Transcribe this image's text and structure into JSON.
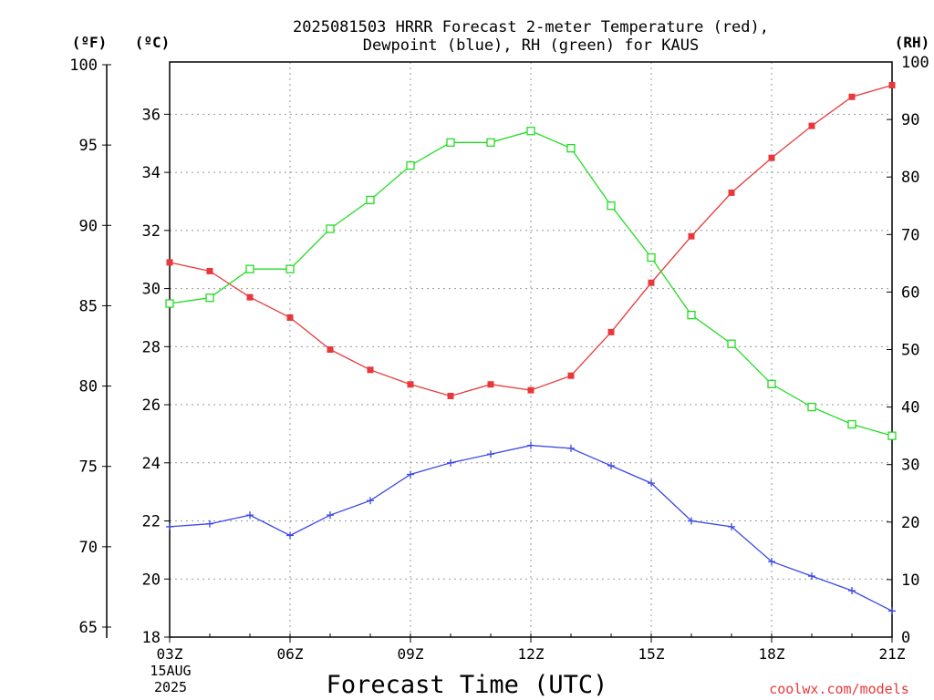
{
  "chart_data": {
    "type": "line",
    "title_line1": "2025081503 HRRR Forecast 2-meter Temperature (red),",
    "title_line2": "Dewpoint (blue), RH (green) for KAUS",
    "xlabel": "Forecast Time (UTC)",
    "credit": "coolwx.com/models",
    "left_outer_axis": {
      "unit": "(ºF)",
      "range": [
        65,
        100
      ],
      "ticks": [
        "65",
        "70",
        "75",
        "80",
        "85",
        "90",
        "95",
        "100"
      ]
    },
    "left_inner_axis": {
      "unit": "(ºC)",
      "range": [
        18,
        37.8
      ],
      "ticks": [
        "18",
        "20",
        "22",
        "24",
        "26",
        "28",
        "30",
        "32",
        "34",
        "36"
      ]
    },
    "right_axis": {
      "unit": "(RH)",
      "range": [
        0,
        100
      ],
      "ticks": [
        "0",
        "10",
        "20",
        "30",
        "40",
        "50",
        "60",
        "70",
        "80",
        "90",
        "100"
      ]
    },
    "x_hours": [
      3,
      4,
      5,
      6,
      7,
      8,
      9,
      10,
      11,
      12,
      13,
      14,
      15,
      16,
      17,
      18,
      19,
      20,
      21
    ],
    "x_ticks": [
      {
        "hour": 3,
        "label": "03Z"
      },
      {
        "hour": 6,
        "label": "06Z"
      },
      {
        "hour": 9,
        "label": "09Z"
      },
      {
        "hour": 12,
        "label": "12Z"
      },
      {
        "hour": 15,
        "label": "15Z"
      },
      {
        "hour": 18,
        "label": "18Z"
      },
      {
        "hour": 21,
        "label": "21Z"
      }
    ],
    "date_label_line1": "15AUG",
    "date_label_line2": "2025",
    "grid": true,
    "series": [
      {
        "key": "temperature",
        "axis": "C",
        "color": "#e8383b",
        "marker": "filled-square",
        "values": [
          30.9,
          30.6,
          29.7,
          29.0,
          27.9,
          27.2,
          26.7,
          26.3,
          26.7,
          26.5,
          27.0,
          28.5,
          30.2,
          31.8,
          33.3,
          34.5,
          35.6,
          36.6,
          37.0
        ]
      },
      {
        "key": "dewpoint",
        "axis": "C",
        "color": "#3a49e6",
        "marker": "plus",
        "values": [
          21.8,
          21.9,
          22.2,
          21.5,
          22.2,
          22.7,
          23.6,
          24.0,
          24.3,
          24.6,
          24.5,
          23.9,
          23.3,
          22.0,
          21.8,
          20.6,
          20.1,
          19.6,
          18.9
        ]
      },
      {
        "key": "rh",
        "axis": "RH",
        "color": "#22dd22",
        "marker": "open-square",
        "values": [
          58,
          59,
          64,
          64,
          71,
          76,
          82,
          86,
          86,
          88,
          85,
          75,
          66,
          56,
          51,
          44,
          40,
          37,
          35
        ]
      }
    ]
  }
}
